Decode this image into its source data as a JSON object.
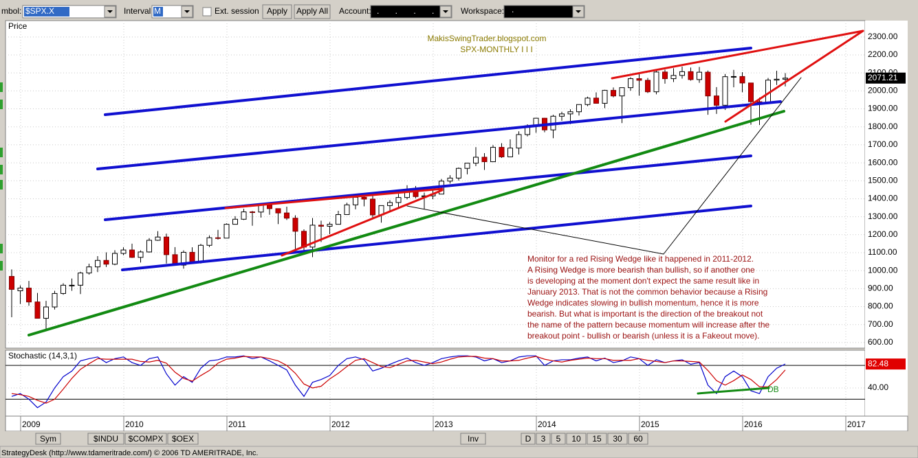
{
  "toolbar": {
    "symbol_label": "mbol:",
    "symbol": "$SPX.X",
    "interval_label": "Interval:",
    "interval": "M",
    "ext_session": "Ext. session",
    "apply": "Apply",
    "apply_all": "Apply All",
    "account_label": "Account:",
    "account": ".       .       .       .",
    "workspace_label": "Workspace:",
    "workspace": "."
  },
  "chart_data": [
    {
      "type": "candlestick",
      "title": "Price",
      "annotations": [
        "MakisSwingTrader.blogspot.com",
        "SPX-MONTHLY  I I I"
      ],
      "note": [
        "Monitor for a red Rising Wedge like it happened in 2011-2012.",
        "A Rising Wedge is more bearish than bullish, so if another one",
        "is developing at the moment don't expect the same result like in",
        "January 2013. That is not the common behavior because a Rising",
        "Wedge indicates slowing in bullish momentum, hence it is more",
        "bearish. But what is important is the direction of the breakout not",
        "the name of the pattern because momentum will increase after the",
        "breakout point - bullish or bearish (unless it is a Fakeout move)."
      ],
      "up_color": "#ffffff",
      "down_color": "#cc0000",
      "ylim": [
        569,
        2391
      ],
      "yticks": [
        {
          "value": 600,
          "label": "600.00"
        },
        {
          "value": 700,
          "label": "700.00"
        },
        {
          "value": 800,
          "label": "800.00"
        },
        {
          "value": 900,
          "label": "900.00"
        },
        {
          "value": 1000,
          "label": "1000.00"
        },
        {
          "value": 1100,
          "label": "1100.00"
        },
        {
          "value": 1200,
          "label": "1200.00"
        },
        {
          "value": 1300,
          "label": "1300.00"
        },
        {
          "value": 1400,
          "label": "1400.00"
        },
        {
          "value": 1500,
          "label": "1500.00"
        },
        {
          "value": 1600,
          "label": "1600.00"
        },
        {
          "value": 1700,
          "label": "1700.00"
        },
        {
          "value": 1800,
          "label": "1800.00"
        },
        {
          "value": 1900,
          "label": "1900.00"
        },
        {
          "value": 2000,
          "label": "2000.00"
        },
        {
          "value": 2100,
          "label": "2100.00"
        },
        {
          "value": 2200,
          "label": "2200.00"
        },
        {
          "value": 2300,
          "label": "2300.00"
        }
      ],
      "last_price": {
        "value": 2071.21,
        "label": "2071.21"
      },
      "xticks": [
        "2009",
        "2010",
        "2011",
        "2012",
        "2013",
        "2014",
        "2015",
        "2016",
        "2017"
      ],
      "candles": [
        [
          968,
          1007,
          741,
          896
        ],
        [
          888,
          918,
          815,
          903
        ],
        [
          903,
          943,
          805,
          826
        ],
        [
          826,
          876,
          735,
          735
        ],
        [
          735,
          832,
          667,
          798
        ],
        [
          798,
          888,
          784,
          873
        ],
        [
          873,
          930,
          866,
          919
        ],
        [
          919,
          956,
          888,
          919
        ],
        [
          919,
          994,
          870,
          987
        ],
        [
          987,
          1039,
          978,
          1021
        ],
        [
          1021,
          1081,
          992,
          1057
        ],
        [
          1057,
          1102,
          1020,
          1036
        ],
        [
          1036,
          1114,
          1030,
          1096
        ],
        [
          1096,
          1130,
          1086,
          1115
        ],
        [
          1115,
          1150,
          1071,
          1074
        ],
        [
          1074,
          1113,
          1045,
          1104
        ],
        [
          1104,
          1181,
          1101,
          1169
        ],
        [
          1169,
          1220,
          1166,
          1187
        ],
        [
          1187,
          1206,
          1040,
          1089
        ],
        [
          1089,
          1131,
          1028,
          1031
        ],
        [
          1031,
          1113,
          1011,
          1102
        ],
        [
          1102,
          1130,
          1040,
          1049
        ],
        [
          1049,
          1149,
          1040,
          1141
        ],
        [
          1141,
          1196,
          1131,
          1183
        ],
        [
          1183,
          1227,
          1173,
          1181
        ],
        [
          1181,
          1263,
          1181,
          1258
        ],
        [
          1258,
          1303,
          1257,
          1286
        ],
        [
          1286,
          1344,
          1282,
          1327
        ],
        [
          1327,
          1332,
          1250,
          1326
        ],
        [
          1326,
          1370,
          1295,
          1364
        ],
        [
          1364,
          1371,
          1311,
          1345
        ],
        [
          1345,
          1346,
          1259,
          1321
        ],
        [
          1321,
          1356,
          1282,
          1292
        ],
        [
          1292,
          1308,
          1101,
          1219
        ],
        [
          1219,
          1230,
          1114,
          1131
        ],
        [
          1131,
          1293,
          1075,
          1253
        ],
        [
          1253,
          1278,
          1159,
          1247
        ],
        [
          1247,
          1270,
          1203,
          1258
        ],
        [
          1258,
          1333,
          1258,
          1312
        ],
        [
          1312,
          1378,
          1312,
          1366
        ],
        [
          1366,
          1420,
          1341,
          1408
        ],
        [
          1408,
          1422,
          1358,
          1398
        ],
        [
          1398,
          1415,
          1292,
          1310
        ],
        [
          1310,
          1363,
          1267,
          1362
        ],
        [
          1362,
          1392,
          1325,
          1379
        ],
        [
          1379,
          1427,
          1354,
          1407
        ],
        [
          1407,
          1475,
          1397,
          1441
        ],
        [
          1441,
          1471,
          1403,
          1412
        ],
        [
          1412,
          1434,
          1343,
          1416
        ],
        [
          1416,
          1448,
          1398,
          1426
        ],
        [
          1426,
          1510,
          1426,
          1498
        ],
        [
          1498,
          1531,
          1485,
          1515
        ],
        [
          1515,
          1574,
          1501,
          1569
        ],
        [
          1569,
          1598,
          1536,
          1598
        ],
        [
          1598,
          1687,
          1581,
          1631
        ],
        [
          1631,
          1654,
          1560,
          1606
        ],
        [
          1606,
          1698,
          1604,
          1686
        ],
        [
          1686,
          1709,
          1627,
          1633
        ],
        [
          1633,
          1730,
          1633,
          1682
        ],
        [
          1682,
          1775,
          1646,
          1757
        ],
        [
          1757,
          1814,
          1747,
          1806
        ],
        [
          1806,
          1849,
          1767,
          1848
        ],
        [
          1848,
          1850,
          1770,
          1783
        ],
        [
          1783,
          1867,
          1737,
          1859
        ],
        [
          1859,
          1884,
          1834,
          1872
        ],
        [
          1872,
          1898,
          1815,
          1884
        ],
        [
          1884,
          1925,
          1863,
          1924
        ],
        [
          1924,
          1968,
          1915,
          1960
        ],
        [
          1960,
          1992,
          1930,
          1931
        ],
        [
          1931,
          2006,
          1904,
          2003
        ],
        [
          2003,
          2019,
          1964,
          1972
        ],
        [
          1972,
          2019,
          1821,
          2018
        ],
        [
          2018,
          2076,
          2001,
          2068
        ],
        [
          2068,
          2094,
          1973,
          2059
        ],
        [
          2059,
          2072,
          1988,
          1995
        ],
        [
          1995,
          2120,
          1981,
          2105
        ],
        [
          2105,
          2118,
          2040,
          2068
        ],
        [
          2068,
          2126,
          2049,
          2086
        ],
        [
          2086,
          2135,
          2068,
          2107
        ],
        [
          2107,
          2130,
          2057,
          2063
        ],
        [
          2063,
          2133,
          2045,
          2104
        ],
        [
          2104,
          2113,
          1867,
          1972
        ],
        [
          1972,
          2021,
          1872,
          1920
        ],
        [
          1920,
          2094,
          1894,
          2079
        ],
        [
          2079,
          2117,
          2020,
          2080
        ],
        [
          2080,
          2104,
          1993,
          2044
        ],
        [
          2044,
          2044,
          1812,
          1940
        ],
        [
          1940,
          1963,
          1810,
          1932
        ],
        [
          1932,
          2072,
          1932,
          2060
        ],
        [
          2060,
          2112,
          2033,
          2065
        ],
        [
          2065,
          2099,
          2025,
          2071
        ]
      ]
    },
    {
      "type": "line",
      "title": "Stochastic (14,3,1)",
      "annotations": [
        "DB"
      ],
      "ylim": [
        -10,
        107
      ],
      "yticks": [
        {
          "value": 40,
          "label": "40.00"
        }
      ],
      "levels": [
        80,
        20
      ],
      "last_value": {
        "value": 82.48,
        "label": "82.48"
      },
      "series": [
        {
          "color": "#0000cc",
          "values": [
            25,
            30,
            20,
            5,
            15,
            40,
            60,
            70,
            88,
            92,
            95,
            85,
            92,
            95,
            85,
            80,
            92,
            95,
            65,
            45,
            60,
            50,
            75,
            88,
            90,
            95,
            95,
            97,
            92,
            95,
            88,
            80,
            72,
            45,
            25,
            50,
            55,
            62,
            80,
            92,
            95,
            90,
            70,
            75,
            82,
            88,
            93,
            85,
            80,
            85,
            92,
            95,
            97,
            97,
            95,
            88,
            92,
            85,
            88,
            95,
            97,
            97,
            80,
            88,
            90,
            90,
            93,
            95,
            88,
            93,
            85,
            88,
            95,
            92,
            80,
            90,
            85,
            88,
            90,
            82,
            85,
            45,
            30,
            60,
            70,
            60,
            35,
            30,
            60,
            75,
            82.48
          ]
        },
        {
          "color": "#cc0000",
          "values": [
            30,
            28,
            25,
            18,
            13,
            20,
            38,
            57,
            73,
            83,
            92,
            91,
            91,
            91,
            91,
            87,
            86,
            89,
            84,
            68,
            57,
            52,
            62,
            71,
            84,
            91,
            93,
            96,
            95,
            95,
            92,
            88,
            80,
            66,
            47,
            40,
            43,
            56,
            66,
            78,
            89,
            92,
            85,
            78,
            76,
            82,
            88,
            89,
            86,
            83,
            86,
            91,
            95,
            96,
            96,
            93,
            92,
            88,
            88,
            89,
            93,
            96,
            91,
            88,
            86,
            89,
            91,
            93,
            92,
            92,
            89,
            89,
            89,
            92,
            89,
            87,
            85,
            88,
            88,
            87,
            86,
            71,
            53,
            45,
            53,
            63,
            55,
            42,
            42,
            55,
            72
          ]
        }
      ]
    }
  ],
  "tabs": {
    "symbols": [
      "Sym",
      "$INDU",
      "$COMPX",
      "$OEX"
    ],
    "intervals": [
      "Inv",
      "D",
      "3",
      "5",
      "10",
      "15",
      "30",
      "60"
    ]
  },
  "status": "StrategyDesk (http://www.tdameritrade.com/) © 2006 TD AMERITRADE, Inc."
}
